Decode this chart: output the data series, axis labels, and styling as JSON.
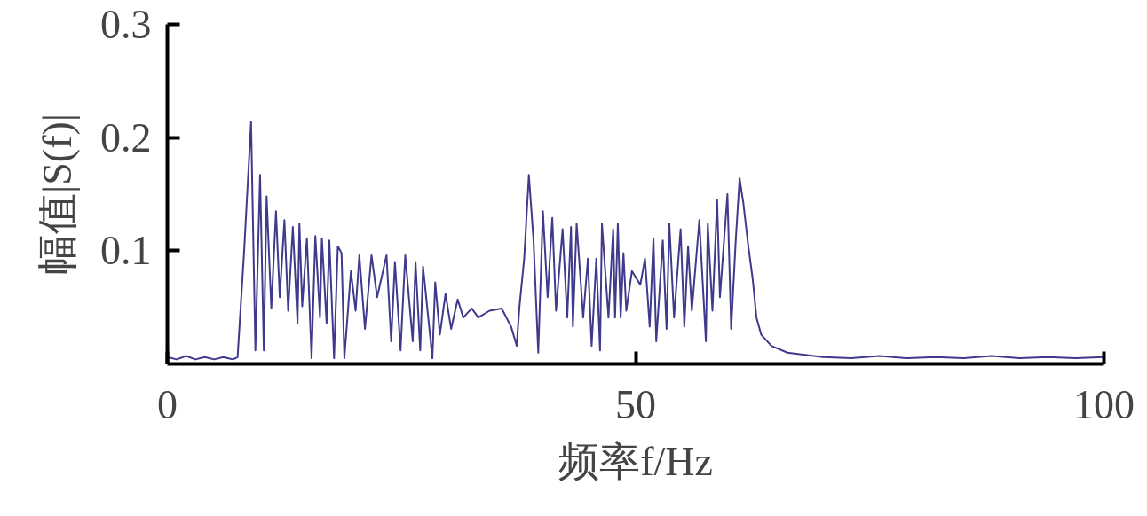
{
  "chart_data": {
    "type": "line",
    "xlabel": "频率f/Hz",
    "ylabel": "幅值|S(f)|",
    "xlim": [
      0,
      100
    ],
    "xticks": [
      0,
      50,
      100
    ],
    "ylim": [
      0,
      0.3
    ],
    "yticks": [
      0.1,
      0.2,
      0.3
    ],
    "grid": false,
    "series": [
      {
        "color": "#3f3a8c",
        "x": [
          0,
          1,
          2,
          3,
          4,
          5,
          6,
          7,
          7.5,
          8.2,
          8.94,
          9.4,
          9.9,
          10.3,
          10.6,
          11.1,
          11.6,
          12.0,
          12.5,
          12.9,
          13.4,
          13.9,
          14.1,
          14.4,
          14.9,
          15.4,
          15.8,
          16.3,
          16.5,
          17.0,
          17.3,
          17.8,
          18.2,
          18.6,
          18.9,
          19.6,
          20.1,
          20.5,
          21.1,
          21.8,
          22.4,
          23.4,
          23.9,
          24.3,
          24.9,
          25.4,
          26.2,
          26.5,
          27.0,
          27.3,
          28.3,
          28.6,
          29.1,
          29.7,
          30.3,
          31.0,
          31.6,
          32.5,
          33.2,
          34.4,
          35.7,
          36.7,
          37.3,
          37.6,
          38.1,
          38.6,
          39.1,
          39.6,
          40.1,
          40.6,
          41.1,
          41.5,
          42.2,
          42.7,
          43.1,
          43.3,
          43.7,
          44.4,
          44.9,
          45.3,
          45.8,
          46.2,
          46.4,
          47.1,
          47.6,
          47.8,
          48.1,
          48.4,
          48.7,
          49.0,
          49.6,
          50.5,
          51.0,
          51.5,
          51.9,
          52.2,
          52.9,
          53.3,
          53.6,
          54.1,
          54.8,
          55.2,
          55.6,
          56.0,
          56.8,
          57.5,
          57.7,
          58.2,
          58.7,
          59.0,
          59.8,
          60.2,
          60.7,
          61.1,
          61.5,
          62.0,
          62.5,
          62.9,
          63.4,
          64.5,
          66.2,
          68.1,
          70,
          73,
          76,
          79,
          82,
          85,
          88,
          91,
          94,
          97,
          100
        ],
        "values": [
          0.006,
          0.004,
          0.007,
          0.004,
          0.006,
          0.004,
          0.006,
          0.004,
          0.006,
          0.1,
          0.214,
          0.012,
          0.167,
          0.012,
          0.148,
          0.049,
          0.135,
          0.059,
          0.127,
          0.047,
          0.121,
          0.036,
          0.124,
          0.051,
          0.111,
          0.005,
          0.113,
          0.041,
          0.111,
          0.036,
          0.109,
          0.005,
          0.104,
          0.098,
          0.005,
          0.082,
          0.047,
          0.096,
          0.031,
          0.096,
          0.059,
          0.096,
          0.02,
          0.09,
          0.012,
          0.096,
          0.02,
          0.09,
          0.012,
          0.086,
          0.005,
          0.072,
          0.026,
          0.062,
          0.031,
          0.057,
          0.041,
          0.049,
          0.041,
          0.047,
          0.049,
          0.033,
          0.016,
          0.051,
          0.093,
          0.167,
          0.109,
          0.01,
          0.135,
          0.059,
          0.129,
          0.047,
          0.119,
          0.041,
          0.121,
          0.033,
          0.124,
          0.041,
          0.093,
          0.016,
          0.093,
          0.012,
          0.124,
          0.041,
          0.119,
          0.041,
          0.124,
          0.041,
          0.098,
          0.047,
          0.082,
          0.07,
          0.093,
          0.033,
          0.111,
          0.02,
          0.109,
          0.031,
          0.124,
          0.041,
          0.119,
          0.033,
          0.104,
          0.047,
          0.127,
          0.02,
          0.124,
          0.047,
          0.145,
          0.059,
          0.15,
          0.031,
          0.111,
          0.164,
          0.142,
          0.106,
          0.075,
          0.041,
          0.026,
          0.016,
          0.01,
          0.008,
          0.006,
          0.005,
          0.007,
          0.005,
          0.006,
          0.005,
          0.007,
          0.005,
          0.006,
          0.005,
          0.006
        ]
      }
    ]
  }
}
